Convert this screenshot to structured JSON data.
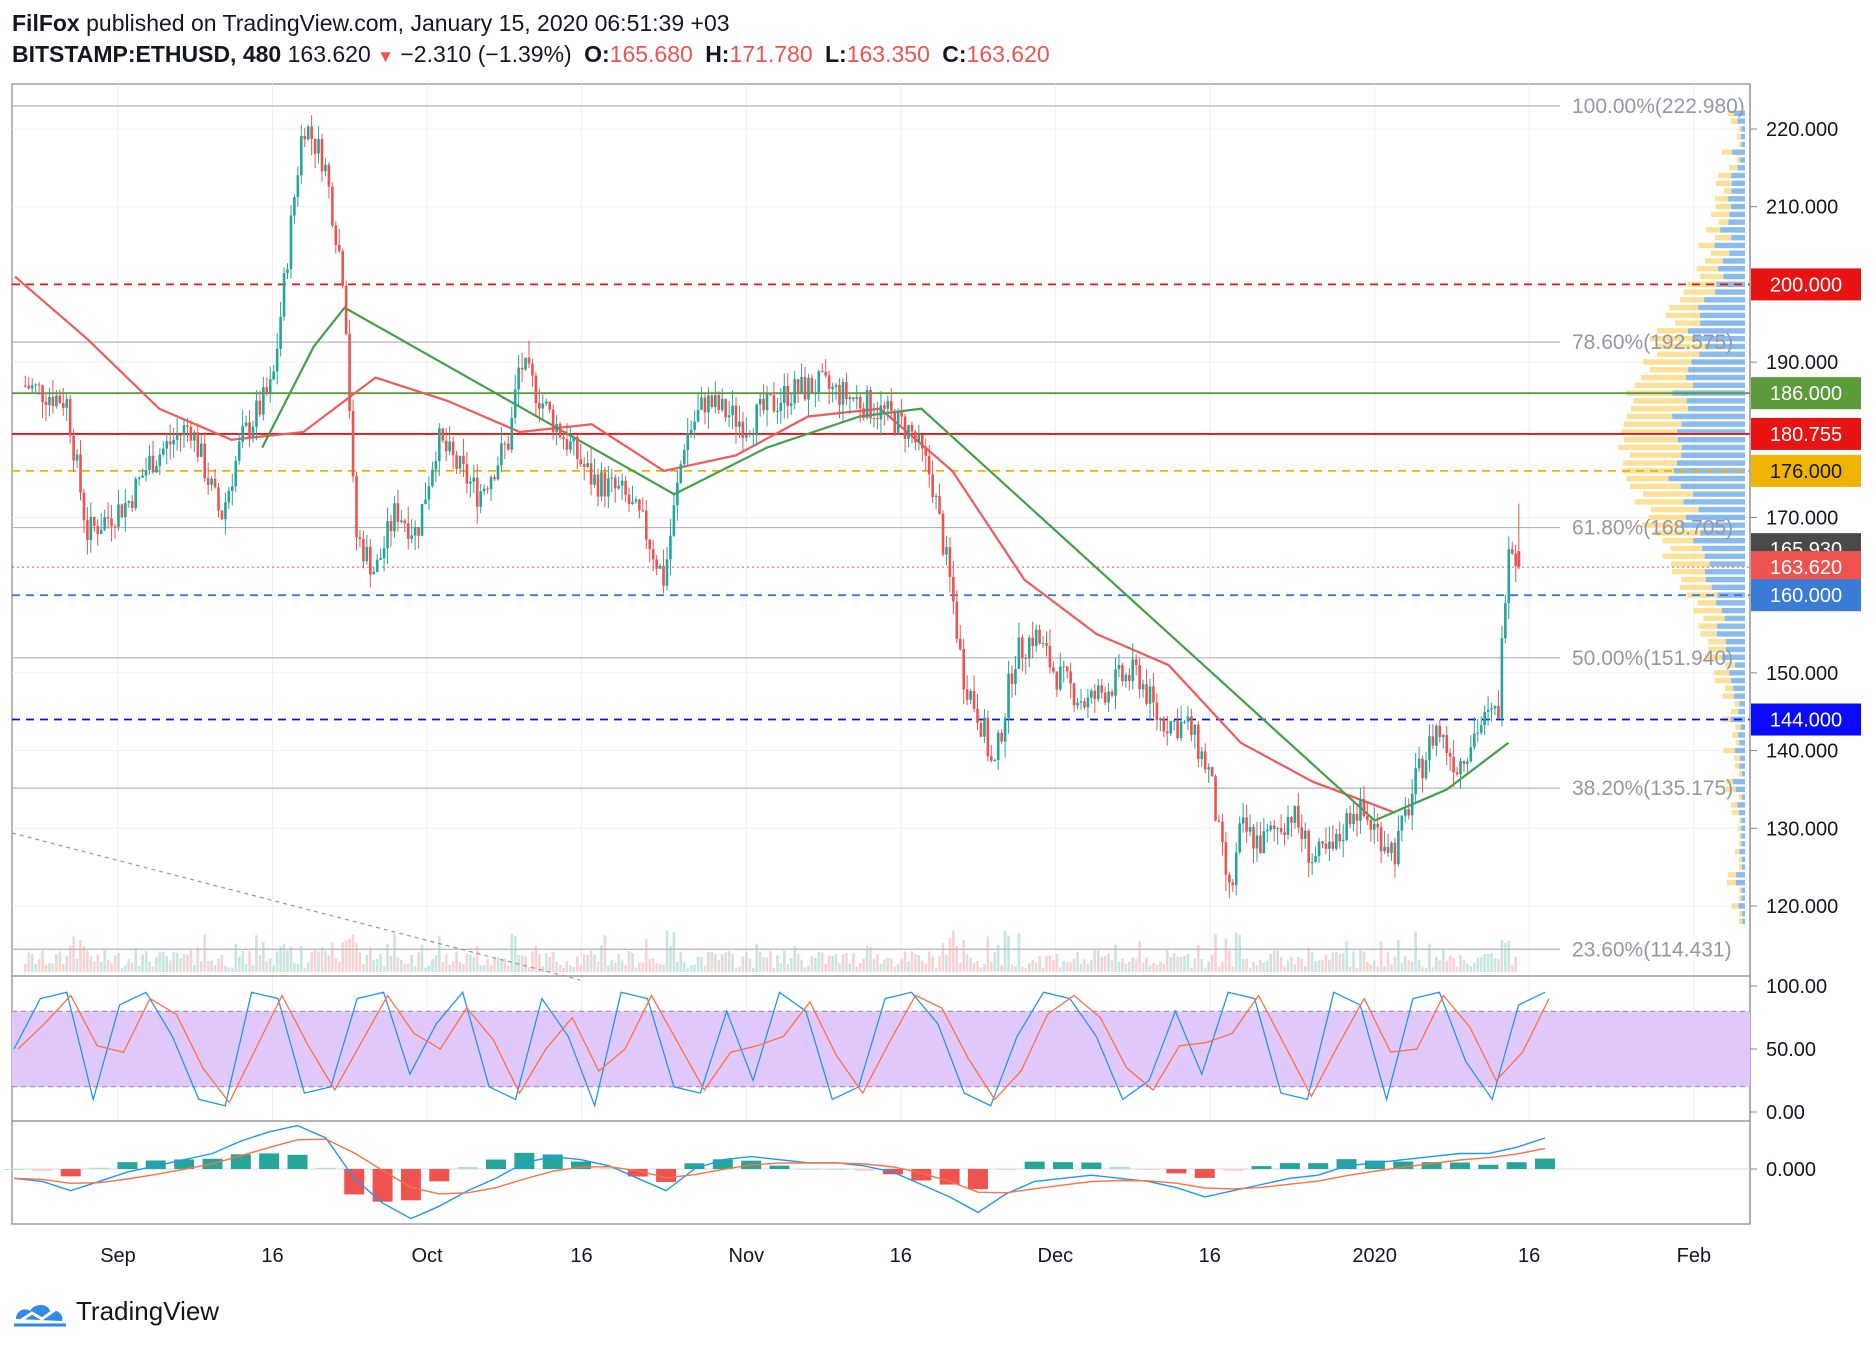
{
  "header": {
    "author": "FilFox",
    "published": "published on TradingView.com, January 15, 2020 06:51:39 +03",
    "symbol": "BITSTAMP:ETHUSD, 480",
    "price": "163.620",
    "change": "−2.310 (−1.39%)",
    "o_label": "O:",
    "o_value": "165.680",
    "h_label": "H:",
    "h_value": "171.780",
    "l_label": "L:",
    "l_value": "163.350",
    "c_label": "C:",
    "c_value": "163.620"
  },
  "footer": {
    "brand": "TradingView"
  },
  "colors": {
    "up": "#26a69a",
    "down": "#ef5350",
    "ma_red": "#f05a5a",
    "ma_green": "#43a047",
    "stoch_band": "#e1c8fa",
    "support_blue": "#1414ff",
    "level_red": "#e81414",
    "level_gold": "#f0b400",
    "level_green": "#8bc34a"
  },
  "chart_data": {
    "type": "candlestick",
    "instrument": "BITSTAMP:ETHUSD",
    "timeframe": "480",
    "x_ticks": [
      "Sep",
      "16",
      "Oct",
      "16",
      "Nov",
      "16",
      "Dec",
      "16",
      "2020",
      "16",
      "Feb"
    ],
    "y_ticks": [
      "220.000",
      "210.000",
      "190.000",
      "170.000",
      "150.000",
      "140.000",
      "130.000",
      "120.000"
    ],
    "ylim": [
      111,
      226
    ],
    "price_path": [
      {
        "t": "2019-08-23",
        "price": 187
      },
      {
        "t": "2019-08-27",
        "price": 185
      },
      {
        "t": "2019-08-29",
        "price": 168
      },
      {
        "t": "2019-09-02",
        "price": 172
      },
      {
        "t": "2019-09-04",
        "price": 177
      },
      {
        "t": "2019-09-08",
        "price": 182
      },
      {
        "t": "2019-09-11",
        "price": 170
      },
      {
        "t": "2019-09-13",
        "price": 180
      },
      {
        "t": "2019-09-16",
        "price": 187
      },
      {
        "t": "2019-09-18",
        "price": 210
      },
      {
        "t": "2019-09-19",
        "price": 221
      },
      {
        "t": "2019-09-21",
        "price": 216
      },
      {
        "t": "2019-09-23",
        "price": 200
      },
      {
        "t": "2019-09-24",
        "price": 168
      },
      {
        "t": "2019-09-26",
        "price": 163
      },
      {
        "t": "2019-09-28",
        "price": 171
      },
      {
        "t": "2019-09-30",
        "price": 168
      },
      {
        "t": "2019-10-02",
        "price": 180
      },
      {
        "t": "2019-10-06",
        "price": 173
      },
      {
        "t": "2019-10-09",
        "price": 180
      },
      {
        "t": "2019-10-10",
        "price": 190
      },
      {
        "t": "2019-10-13",
        "price": 183
      },
      {
        "t": "2019-10-17",
        "price": 175
      },
      {
        "t": "2019-10-20",
        "price": 173
      },
      {
        "t": "2019-10-22",
        "price": 169
      },
      {
        "t": "2019-10-24",
        "price": 162
      },
      {
        "t": "2019-10-26",
        "price": 180
      },
      {
        "t": "2019-10-28",
        "price": 185
      },
      {
        "t": "2019-11-01",
        "price": 182
      },
      {
        "t": "2019-11-05",
        "price": 186
      },
      {
        "t": "2019-11-08",
        "price": 187
      },
      {
        "t": "2019-11-12",
        "price": 185
      },
      {
        "t": "2019-11-15",
        "price": 183
      },
      {
        "t": "2019-11-17",
        "price": 181
      },
      {
        "t": "2019-11-19",
        "price": 175
      },
      {
        "t": "2019-11-21",
        "price": 160
      },
      {
        "t": "2019-11-22",
        "price": 150
      },
      {
        "t": "2019-11-24",
        "price": 143
      },
      {
        "t": "2019-11-25",
        "price": 137
      },
      {
        "t": "2019-11-27",
        "price": 152
      },
      {
        "t": "2019-11-29",
        "price": 155
      },
      {
        "t": "2019-12-01",
        "price": 150
      },
      {
        "t": "2019-12-04",
        "price": 146
      },
      {
        "t": "2019-12-07",
        "price": 149
      },
      {
        "t": "2019-12-09",
        "price": 150
      },
      {
        "t": "2019-12-11",
        "price": 144
      },
      {
        "t": "2019-12-14",
        "price": 143
      },
      {
        "t": "2019-12-16",
        "price": 137
      },
      {
        "t": "2019-12-17",
        "price": 128
      },
      {
        "t": "2019-12-18",
        "price": 121
      },
      {
        "t": "2019-12-19",
        "price": 130
      },
      {
        "t": "2019-12-21",
        "price": 128
      },
      {
        "t": "2019-12-24",
        "price": 132
      },
      {
        "t": "2019-12-26",
        "price": 126
      },
      {
        "t": "2019-12-28",
        "price": 127
      },
      {
        "t": "2019-12-30",
        "price": 133
      },
      {
        "t": "2020-01-01",
        "price": 130
      },
      {
        "t": "2020-01-03",
        "price": 127
      },
      {
        "t": "2020-01-05",
        "price": 136
      },
      {
        "t": "2020-01-07",
        "price": 143
      },
      {
        "t": "2020-01-09",
        "price": 138
      },
      {
        "t": "2020-01-11",
        "price": 143
      },
      {
        "t": "2020-01-13",
        "price": 145
      },
      {
        "t": "2020-01-14",
        "price": 168
      },
      {
        "t": "2020-01-15",
        "price": 163.62
      }
    ],
    "sma_red": [
      {
        "t": "2019-08-22",
        "v": 201
      },
      {
        "t": "2019-08-29",
        "v": 193
      },
      {
        "t": "2019-09-05",
        "v": 184
      },
      {
        "t": "2019-09-12",
        "v": 180
      },
      {
        "t": "2019-09-19",
        "v": 181
      },
      {
        "t": "2019-09-26",
        "v": 188
      },
      {
        "t": "2019-10-03",
        "v": 185
      },
      {
        "t": "2019-10-10",
        "v": 181
      },
      {
        "t": "2019-10-17",
        "v": 182
      },
      {
        "t": "2019-10-24",
        "v": 176
      },
      {
        "t": "2019-10-31",
        "v": 178
      },
      {
        "t": "2019-11-07",
        "v": 183
      },
      {
        "t": "2019-11-14",
        "v": 184
      },
      {
        "t": "2019-11-21",
        "v": 176
      },
      {
        "t": "2019-11-28",
        "v": 162
      },
      {
        "t": "2019-12-05",
        "v": 155
      },
      {
        "t": "2019-12-12",
        "v": 151
      },
      {
        "t": "2019-12-19",
        "v": 141
      },
      {
        "t": "2019-12-26",
        "v": 136
      },
      {
        "t": "2020-01-03",
        "v": 132
      }
    ],
    "sma_green": [
      {
        "t": "2019-09-15",
        "v": 179
      },
      {
        "t": "2019-09-20",
        "v": 192
      },
      {
        "t": "2019-09-23",
        "v": 197
      },
      {
        "t": "2019-10-25",
        "v": 173
      },
      {
        "t": "2019-11-03",
        "v": 179
      },
      {
        "t": "2019-11-12",
        "v": 183
      },
      {
        "t": "2019-11-18",
        "v": 184
      },
      {
        "t": "2020-01-01",
        "v": 131
      },
      {
        "t": "2020-01-08",
        "v": 135
      },
      {
        "t": "2020-01-14",
        "v": 141
      }
    ],
    "horizontal_levels": [
      {
        "label": "200.000",
        "value": 200,
        "color": "#e81414",
        "style": "dashed"
      },
      {
        "label": "186.000",
        "value": 186,
        "color": "#5b9b3a",
        "style": "solid"
      },
      {
        "label": "180.755",
        "value": 180.755,
        "color": "#e81414",
        "style": "solid"
      },
      {
        "label": "176.000",
        "value": 176,
        "color": "#f0b400",
        "style": "dashed"
      },
      {
        "label": "165.930",
        "value": 165.93,
        "color": "#4a4a4a",
        "style": "none"
      },
      {
        "label": "163.620",
        "value": 163.62,
        "color": "#ef5350",
        "style": "dotted"
      },
      {
        "label": "160.000",
        "value": 160,
        "color": "#3a7bd5",
        "style": "dashed"
      },
      {
        "label": "144.000",
        "value": 144,
        "color": "#0a0aff",
        "style": "dashed"
      }
    ],
    "fibonacci": [
      {
        "label": "100.00%(222.980)",
        "value": 222.98
      },
      {
        "label": "78.60%(192.575)",
        "value": 192.575
      },
      {
        "label": "61.80%(168.705)",
        "value": 168.705
      },
      {
        "label": "50.00%(151.940)",
        "value": 151.94
      },
      {
        "label": "38.20%(135.175)",
        "value": 135.175
      },
      {
        "label": "23.60%(114.431)",
        "value": 114.431
      }
    ],
    "stochastic": {
      "y_ticks": [
        "100.00",
        "50.00",
        "0.00"
      ],
      "band": [
        20,
        80
      ],
      "k": [
        50,
        90,
        95,
        10,
        85,
        95,
        60,
        10,
        5,
        95,
        90,
        15,
        20,
        90,
        95,
        30,
        70,
        95,
        20,
        10,
        90,
        60,
        5,
        95,
        90,
        20,
        15,
        80,
        25,
        95,
        80,
        10,
        20,
        90,
        95,
        70,
        15,
        5,
        60,
        95,
        90,
        60,
        10,
        25,
        80,
        30,
        95,
        90,
        15,
        10,
        95,
        85,
        10,
        90,
        95,
        40,
        10,
        85,
        95
      ]
    },
    "macd": {
      "y_ticks": [
        "0.000"
      ],
      "macd": [
        -3,
        -4,
        -7,
        -4,
        -1,
        1,
        3,
        5,
        9,
        12,
        14,
        10,
        -3,
        -11,
        -16,
        -12,
        -7,
        -3,
        2,
        4,
        3,
        1,
        -3,
        -7,
        0,
        3,
        4,
        3,
        2,
        2,
        1,
        -1,
        -5,
        -9,
        -14,
        -8,
        -4,
        -3,
        -2,
        -3,
        -4,
        -6,
        -9,
        -7,
        -5,
        -3,
        -2,
        1,
        2,
        3,
        4,
        5,
        5,
        7,
        10
      ]
    }
  }
}
